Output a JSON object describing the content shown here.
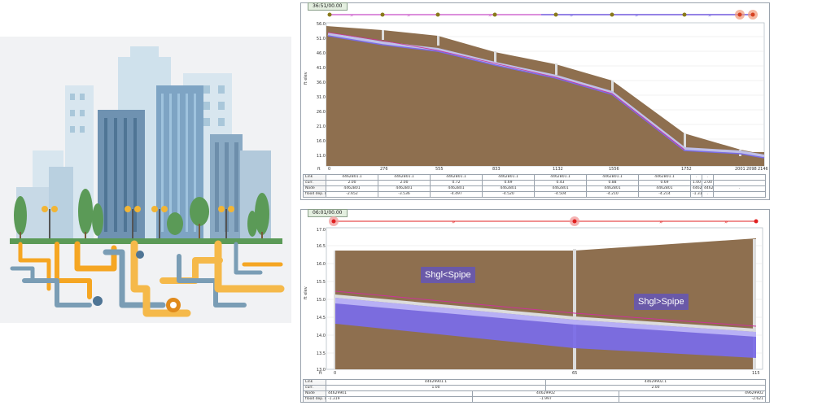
{
  "profile1": {
    "tab_label": "36:51/00.00",
    "yaxis_label": "ft elev",
    "x_unit": "ft",
    "y_ticks": [
      "56.0",
      "51.0",
      "46.0",
      "41.0",
      "36.0",
      "31.0",
      "26.0",
      "21.0",
      "16.0",
      "11.0"
    ],
    "x_ticks": [
      "0",
      "276",
      "555",
      "833",
      "1132",
      "1556",
      "1752",
      "2001",
      "2098",
      "2146"
    ],
    "table": {
      "row_labels": [
        "Link",
        "curr.",
        "Node",
        "flood dep. (ft)"
      ],
      "links": [
        "4462B01.1",
        "4462B01.1",
        "4462B01.1",
        "4462B01.1",
        "4462B01.1",
        "4462B01.1",
        "4462B01.1",
        ".",
        "."
      ],
      "link_vals": [
        "2.00",
        "2.00",
        "0.72",
        "0.69",
        "0.43",
        "0.88",
        "0.69",
        "1.00",
        "2.00"
      ],
      "nodes": [
        "4462B01",
        "4462B01",
        "4462B01",
        "4462B01",
        "4462B01",
        "4462B01",
        "4462B01",
        "4462B01",
        "4462B01",
        "."
      ],
      "flood": [
        "-2.652",
        "-3.536",
        "-4.497",
        "-4.520",
        "-4.504",
        "-4.210",
        "-4.214",
        "-1.319",
        "."
      ]
    }
  },
  "profile2": {
    "tab_label": "06:01/00.00",
    "yaxis_label": "ft elev",
    "x_unit": "ft",
    "y_ticks": [
      "17.0",
      "16.5",
      "16.0",
      "15.5",
      "15.0",
      "14.5",
      "14.0",
      "13.5",
      "13.0"
    ],
    "x_ticks": [
      "0",
      "65",
      "115"
    ],
    "callout_left": "Shgl<Spipe",
    "callout_right": "Shgl>Spipe",
    "table": {
      "row_labels": [
        "Link",
        "curr.",
        "Node",
        "flood dep. (ft)"
      ],
      "links": [
        "44629901.1",
        "44629902.1"
      ],
      "link_vals": [
        "1.00",
        "2.00"
      ],
      "nodes": [
        "44629901",
        "44629902",
        "49629902"
      ],
      "flood": [
        "-1.319",
        "-1.997",
        "-2.621"
      ]
    }
  },
  "colors": {
    "ground": "#8e6f4f",
    "pipe": "#8a7cf0",
    "hgl": "#cc3399",
    "node_red": "#e02020"
  }
}
